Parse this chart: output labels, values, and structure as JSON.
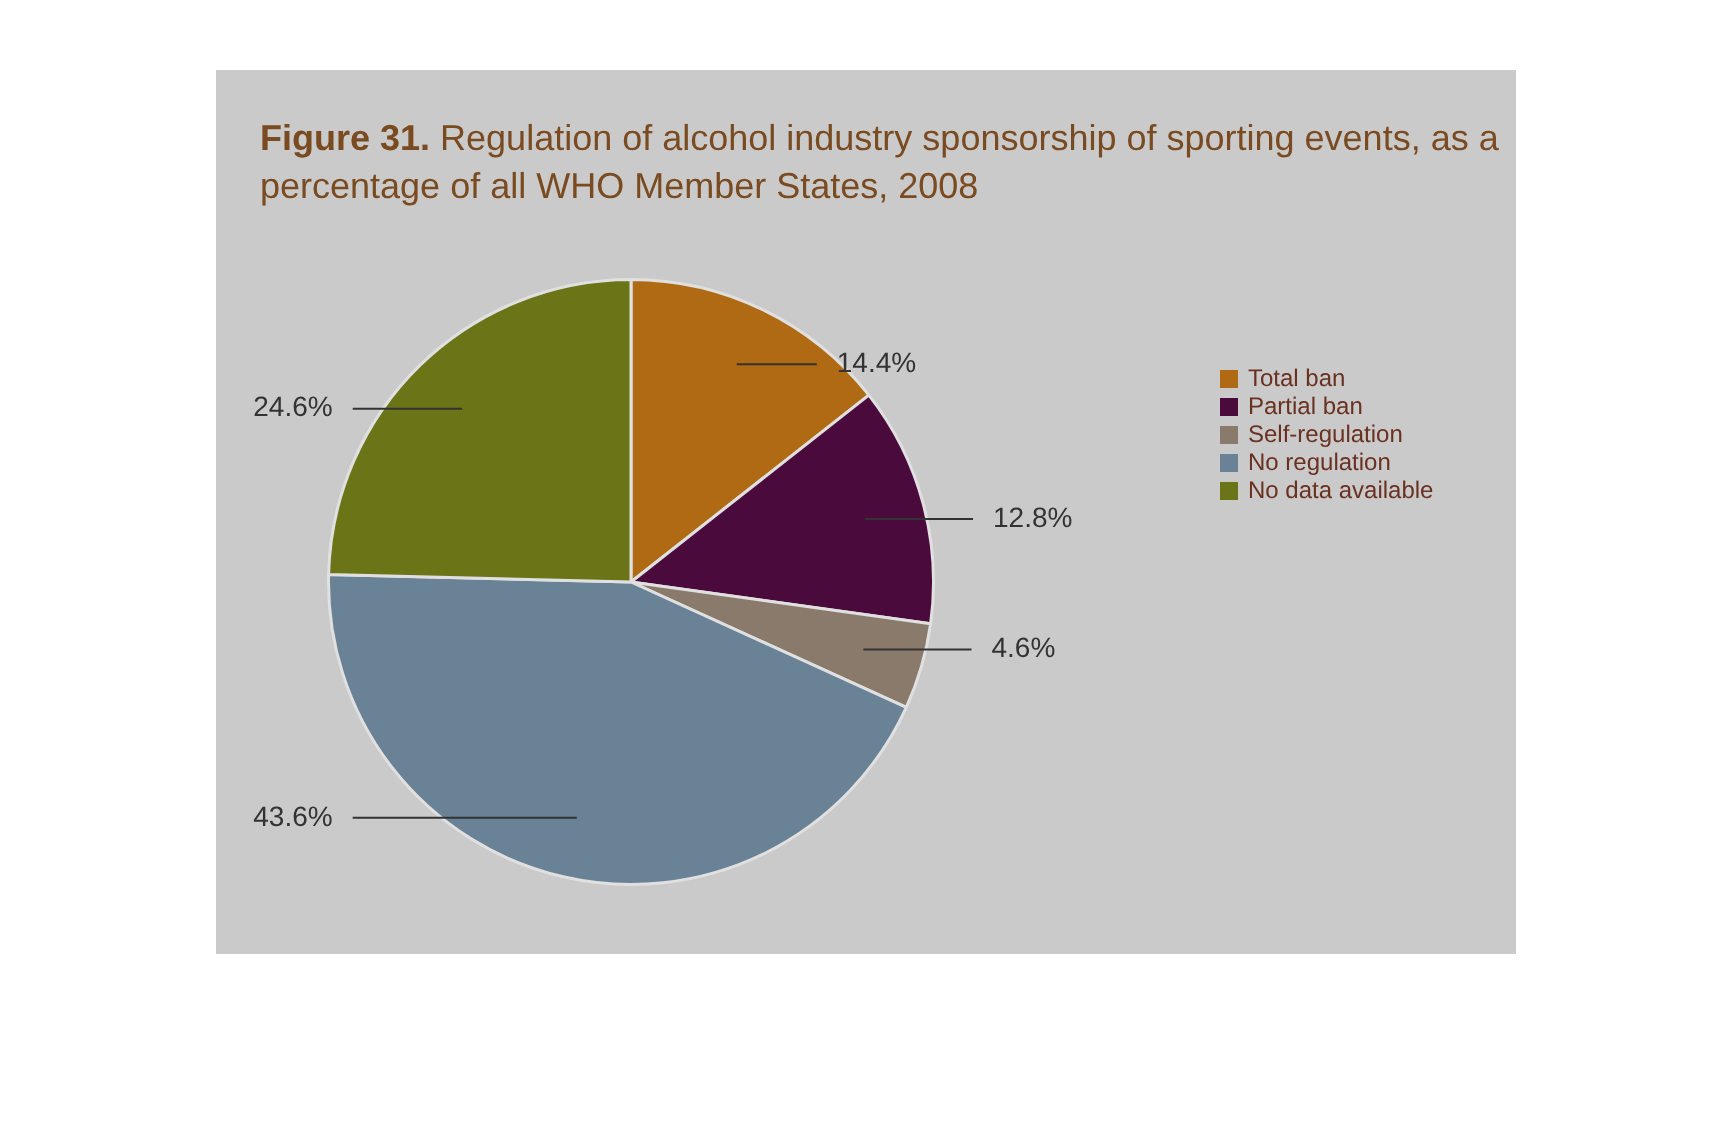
{
  "chart_data": {
    "type": "pie",
    "title": "Figure 31. Regulation of alcohol industry sponsorship of sporting events, as a percentage of all WHO Member States, 2008",
    "categories": [
      "Total ban",
      "Partial ban",
      "Self-regulation",
      "No regulation",
      "No data available"
    ],
    "values": [
      14.4,
      12.8,
      4.6,
      43.6,
      24.6
    ],
    "colors": [
      "#b06a14",
      "#4a0a3c",
      "#8a7a6c",
      "#6a8296",
      "#6c7418"
    ],
    "value_labels": [
      "14.4%",
      "12.8%",
      "4.6%",
      "43.6%",
      "24.6%"
    ],
    "legend": "right"
  }
}
